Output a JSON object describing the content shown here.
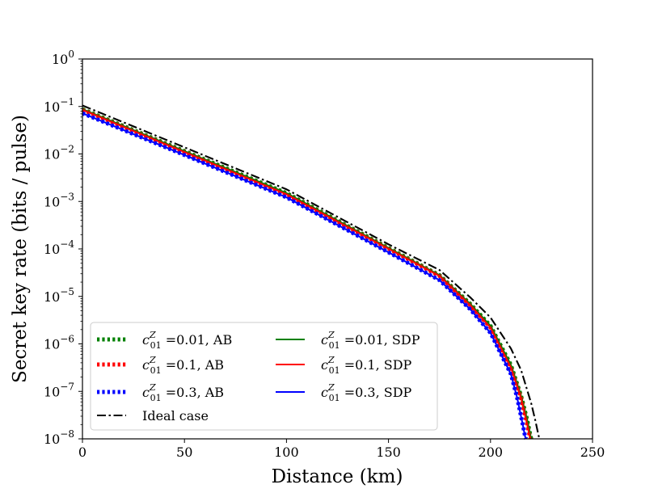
{
  "chart_data": {
    "type": "line",
    "title": "",
    "xlabel": "Distance (km)",
    "ylabel": "Secret key rate (bits / pulse)",
    "xlim": [
      0,
      250
    ],
    "ylim_log10": [
      -8,
      0
    ],
    "y_scale": "log",
    "x_ticks": [
      0,
      50,
      100,
      150,
      200,
      250
    ],
    "x_tick_labels": [
      "0",
      "50",
      "100",
      "150",
      "200",
      "250"
    ],
    "y_ticks_exponent": [
      0,
      -1,
      -2,
      -3,
      -4,
      -5,
      -6,
      -7,
      -8
    ],
    "y_tick_base": "10",
    "y_tick_exponent_labels": [
      "0",
      "−1",
      "−2",
      "−3",
      "−4",
      "−5",
      "−6",
      "−7",
      "−8"
    ],
    "legend_position": "lower-left",
    "series": [
      {
        "name": "c01Z=0.01, AB",
        "symbol": "c",
        "sub": "01",
        "sup": "Z",
        "label_rest": " =0.01, AB",
        "color": "#008000",
        "style": "dotted",
        "points": [
          [
            0,
            0.088
          ],
          [
            50,
            0.0115
          ],
          [
            100,
            0.0015
          ],
          [
            150,
            0.000105
          ],
          [
            175,
            2.8e-05
          ],
          [
            190,
            7e-06
          ],
          [
            200,
            2.4e-06
          ],
          [
            210,
            3.6e-07
          ],
          [
            215,
            8e-08
          ],
          [
            218,
            2.5e-08
          ],
          [
            219.5,
            1.2e-08
          ],
          [
            220,
            1e-08
          ]
        ]
      },
      {
        "name": "c01Z=0.1, AB",
        "symbol": "c",
        "sub": "01",
        "sup": "Z",
        "label_rest": " =0.1, AB",
        "color": "#ff0000",
        "style": "dotted",
        "points": [
          [
            0,
            0.085
          ],
          [
            50,
            0.011
          ],
          [
            100,
            0.00142
          ],
          [
            150,
            0.000101
          ],
          [
            175,
            2.7e-05
          ],
          [
            190,
            6.6e-06
          ],
          [
            200,
            2.2e-06
          ],
          [
            210,
            3.2e-07
          ],
          [
            215,
            7.2e-08
          ],
          [
            217.8,
            2.2e-08
          ],
          [
            219.2,
            1.15e-08
          ],
          [
            219.6,
            1e-08
          ]
        ]
      },
      {
        "name": "c01Z=0.3, AB",
        "symbol": "c",
        "sub": "01",
        "sup": "Z",
        "label_rest": " =0.3, AB",
        "color": "#0000ff",
        "style": "dotted",
        "points": [
          [
            0,
            0.072
          ],
          [
            50,
            0.0095
          ],
          [
            100,
            0.00122
          ],
          [
            150,
            8.5e-05
          ],
          [
            175,
            2.2e-05
          ],
          [
            190,
            5.4e-06
          ],
          [
            200,
            1.7e-06
          ],
          [
            210,
            2.3e-07
          ],
          [
            213,
            7.5e-08
          ],
          [
            215.8,
            2e-08
          ],
          [
            217,
            1.1e-08
          ],
          [
            217.4,
            1e-08
          ]
        ]
      },
      {
        "name": "c01Z=0.01, SDP",
        "symbol": "c",
        "sub": "01",
        "sup": "Z",
        "label_rest": " =0.01, SDP",
        "color": "#008000",
        "style": "solid",
        "points": [
          [
            0,
            0.088
          ],
          [
            50,
            0.0115
          ],
          [
            100,
            0.0015
          ],
          [
            150,
            0.000105
          ],
          [
            175,
            2.8e-05
          ],
          [
            190,
            7e-06
          ],
          [
            200,
            2.4e-06
          ],
          [
            210,
            3.6e-07
          ],
          [
            215,
            8e-08
          ],
          [
            218,
            2.5e-08
          ],
          [
            219.5,
            1.2e-08
          ],
          [
            220,
            1e-08
          ]
        ]
      },
      {
        "name": "c01Z=0.1, SDP",
        "symbol": "c",
        "sub": "01",
        "sup": "Z",
        "label_rest": " =0.1, SDP",
        "color": "#ff0000",
        "style": "solid",
        "points": [
          [
            0,
            0.085
          ],
          [
            50,
            0.011
          ],
          [
            100,
            0.00142
          ],
          [
            150,
            0.000101
          ],
          [
            175,
            2.7e-05
          ],
          [
            190,
            6.6e-06
          ],
          [
            200,
            2.2e-06
          ],
          [
            210,
            3.2e-07
          ],
          [
            215,
            7.2e-08
          ],
          [
            217.8,
            2.2e-08
          ],
          [
            219.2,
            1.15e-08
          ],
          [
            219.6,
            1e-08
          ]
        ]
      },
      {
        "name": "c01Z=0.3, SDP",
        "symbol": "c",
        "sub": "01",
        "sup": "Z",
        "label_rest": " =0.3, SDP",
        "color": "#0000ff",
        "style": "solid",
        "points": [
          [
            0,
            0.072
          ],
          [
            50,
            0.0095
          ],
          [
            100,
            0.00122
          ],
          [
            150,
            8.5e-05
          ],
          [
            175,
            2.2e-05
          ],
          [
            190,
            5.4e-06
          ],
          [
            200,
            1.7e-06
          ],
          [
            210,
            2.3e-07
          ],
          [
            213,
            7.5e-08
          ],
          [
            215.8,
            2e-08
          ],
          [
            217,
            1.1e-08
          ],
          [
            217.4,
            1e-08
          ]
        ]
      },
      {
        "name": "Ideal case",
        "label": "Ideal case",
        "color": "#000000",
        "style": "dashdot",
        "points": [
          [
            0,
            0.105
          ],
          [
            50,
            0.0138
          ],
          [
            100,
            0.0018
          ],
          [
            150,
            0.000125
          ],
          [
            175,
            3.6e-05
          ],
          [
            190,
            9.6e-06
          ],
          [
            200,
            3.6e-06
          ],
          [
            210,
            8e-07
          ],
          [
            215,
            2.8e-07
          ],
          [
            220,
            5.5e-08
          ],
          [
            222,
            2.4e-08
          ],
          [
            223.5,
            1.2e-08
          ],
          [
            224,
            1e-08
          ]
        ]
      }
    ]
  }
}
